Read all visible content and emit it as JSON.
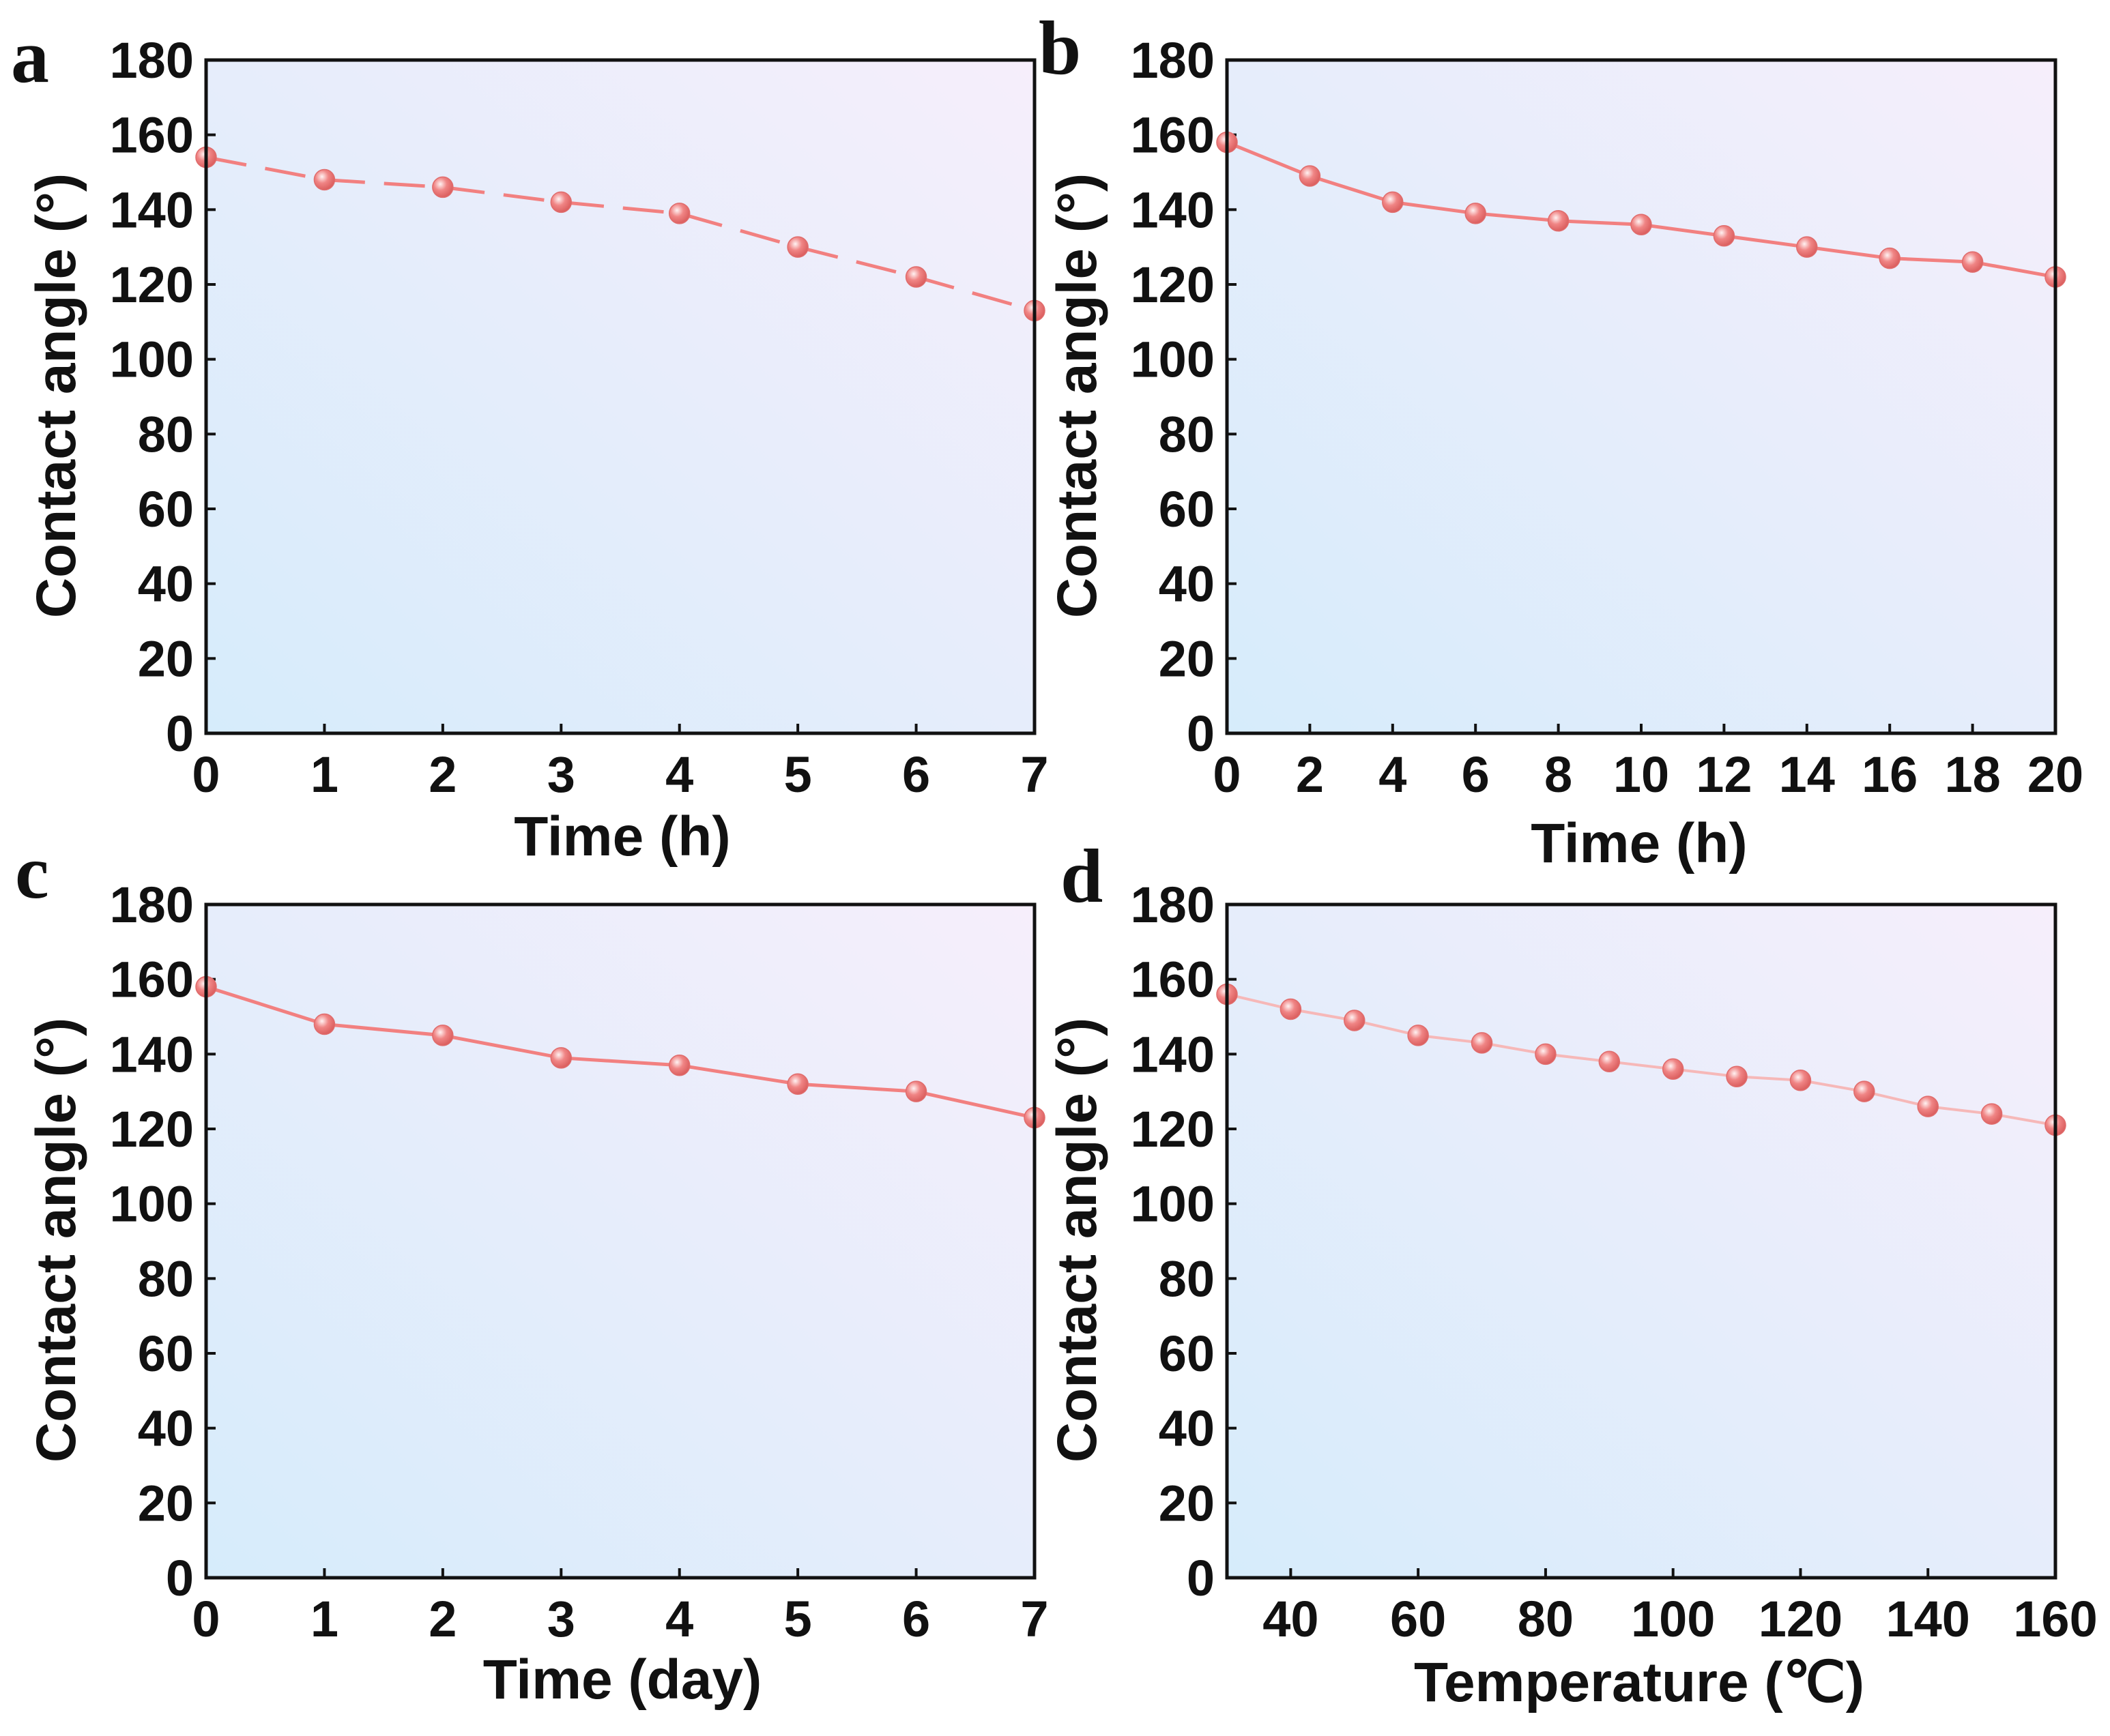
{
  "style": {
    "line_color": "#f28080",
    "marker_color": "#f08585",
    "frame_color": "#111111",
    "bg_start": "#d6ecfb",
    "bg_end": "#f6eefb"
  },
  "chart_data": [
    {
      "panel": "a",
      "type": "line",
      "line_style": "dashed",
      "x": [
        0,
        1,
        2,
        3,
        4,
        5,
        6,
        7
      ],
      "y": [
        154,
        148,
        146,
        142,
        139,
        130,
        122,
        113
      ],
      "xlim": [
        0,
        7
      ],
      "ylim": [
        0,
        180
      ],
      "xticks": [
        "0",
        "1",
        "2",
        "3",
        "4",
        "5",
        "6",
        "7"
      ],
      "xtick_values": [
        0,
        1,
        2,
        3,
        4,
        5,
        6,
        7
      ],
      "yticks": [
        "0",
        "20",
        "40",
        "60",
        "80",
        "100",
        "120",
        "140",
        "160",
        "180"
      ],
      "ytick_values": [
        0,
        20,
        40,
        60,
        80,
        100,
        120,
        140,
        160,
        180
      ],
      "xlabel": "Time (h)",
      "ylabel": "Contact angle (°)"
    },
    {
      "panel": "b",
      "type": "line",
      "line_style": "solid",
      "x": [
        0,
        2,
        4,
        6,
        8,
        10,
        12,
        14,
        16,
        18,
        20
      ],
      "y": [
        158,
        149,
        142,
        139,
        137,
        136,
        133,
        130,
        127,
        126,
        122
      ],
      "xlim": [
        0,
        20
      ],
      "ylim": [
        0,
        180
      ],
      "xticks": [
        "0",
        "2",
        "4",
        "6",
        "8",
        "10",
        "12",
        "14",
        "16",
        "18",
        "20"
      ],
      "xtick_values": [
        0,
        2,
        4,
        6,
        8,
        10,
        12,
        14,
        16,
        18,
        20
      ],
      "yticks": [
        "0",
        "20",
        "40",
        "60",
        "80",
        "100",
        "120",
        "140",
        "160",
        "180"
      ],
      "ytick_values": [
        0,
        20,
        40,
        60,
        80,
        100,
        120,
        140,
        160,
        180
      ],
      "xlabel": "Time (h)",
      "ylabel": "Contact angle (°)"
    },
    {
      "panel": "c",
      "type": "line",
      "line_style": "solid",
      "x": [
        0,
        1,
        2,
        3,
        4,
        5,
        6,
        7
      ],
      "y": [
        158,
        148,
        145,
        139,
        137,
        132,
        130,
        123
      ],
      "xlim": [
        0,
        7
      ],
      "ylim": [
        0,
        180
      ],
      "xticks": [
        "0",
        "1",
        "2",
        "3",
        "4",
        "5",
        "6",
        "7"
      ],
      "xtick_values": [
        0,
        1,
        2,
        3,
        4,
        5,
        6,
        7
      ],
      "yticks": [
        "0",
        "20",
        "40",
        "60",
        "80",
        "100",
        "120",
        "140",
        "160",
        "180"
      ],
      "ytick_values": [
        0,
        20,
        40,
        60,
        80,
        100,
        120,
        140,
        160,
        180
      ],
      "xlabel": "Time (day)",
      "ylabel": "Contact angle (°)"
    },
    {
      "panel": "d",
      "type": "line",
      "line_style": "solid-light",
      "x": [
        30,
        40,
        50,
        60,
        70,
        80,
        90,
        100,
        110,
        120,
        130,
        140,
        150,
        160
      ],
      "y": [
        156,
        152,
        149,
        145,
        143,
        140,
        138,
        136,
        134,
        133,
        130,
        126,
        124,
        121
      ],
      "xlim": [
        30,
        160
      ],
      "ylim": [
        0,
        180
      ],
      "xticks": [
        "40",
        "60",
        "80",
        "100",
        "120",
        "140",
        "160"
      ],
      "xtick_values": [
        40,
        60,
        80,
        100,
        120,
        140,
        160
      ],
      "yticks": [
        "0",
        "20",
        "40",
        "60",
        "80",
        "100",
        "120",
        "140",
        "160",
        "180"
      ],
      "ytick_values": [
        0,
        20,
        40,
        60,
        80,
        100,
        120,
        140,
        160,
        180
      ],
      "xlabel": "Temperature (℃)",
      "ylabel": "Contact angle (°)"
    }
  ]
}
